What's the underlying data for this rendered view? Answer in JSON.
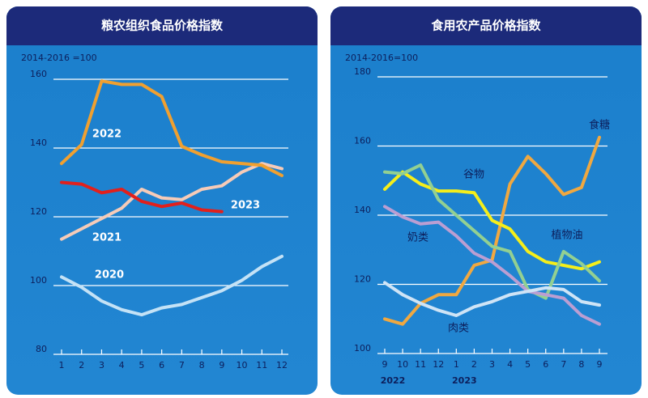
{
  "chart_data": [
    {
      "type": "line",
      "title": "粮农组织食品价格指数",
      "note": "2014-2016 =100",
      "categories": [
        "1",
        "2",
        "3",
        "4",
        "5",
        "6",
        "7",
        "8",
        "9",
        "10",
        "11",
        "12"
      ],
      "ylim": [
        80,
        160
      ],
      "yticks": [
        80,
        100,
        120,
        140,
        160
      ],
      "grid": true,
      "series": [
        {
          "name": "2020",
          "color": "#c4e2f6",
          "values": [
            102.5,
            99.5,
            95.5,
            93,
            91.5,
            93.5,
            94.5,
            96.5,
            98.5,
            101.5,
            105.5,
            108.5
          ]
        },
        {
          "name": "2021",
          "color": "#f6cbb8",
          "values": [
            113.5,
            116.5,
            119.5,
            122.5,
            128,
            125.5,
            125,
            128,
            129,
            133,
            135.5,
            134
          ]
        },
        {
          "name": "2022",
          "color": "#f0a030",
          "values": [
            135.5,
            141,
            159.5,
            158.5,
            158.5,
            155,
            140.5,
            138,
            136,
            135.5,
            135,
            132
          ]
        },
        {
          "name": "2023",
          "color": "#e2201c",
          "values": [
            130,
            129.5,
            127,
            128,
            124.5,
            123,
            124,
            122,
            121.5,
            null,
            null,
            null
          ]
        }
      ]
    },
    {
      "type": "line",
      "title": "食用农产品价格指数",
      "note": "2014-2016=100",
      "categories": [
        "9",
        "10",
        "11",
        "12",
        "1",
        "2",
        "3",
        "4",
        "5",
        "6",
        "7",
        "8",
        "9"
      ],
      "x_group_labels": [
        "2022",
        null,
        null,
        null,
        "2023",
        null,
        null,
        null,
        null,
        null,
        null,
        null,
        null
      ],
      "ylim": [
        100,
        180
      ],
      "yticks": [
        100,
        120,
        140,
        160,
        180
      ],
      "grid": true,
      "series": [
        {
          "name": "食糖",
          "color": "#f0a840",
          "values": [
            110,
            108.5,
            114.5,
            117,
            117,
            125.5,
            127,
            149,
            157,
            152,
            146,
            148,
            162.5
          ]
        },
        {
          "name": "谷物",
          "color": "#f5ee1a",
          "values": [
            147.5,
            152.5,
            149,
            147,
            147,
            146.5,
            138.5,
            136,
            129.5,
            126.5,
            125.5,
            124.5,
            126.5
          ]
        },
        {
          "name": "植物油",
          "color": "#92d092",
          "values": [
            152.5,
            152,
            154.5,
            144.5,
            140,
            135.5,
            131,
            129.5,
            118.5,
            116,
            129.5,
            126,
            121
          ]
        },
        {
          "name": "奶类",
          "color": "#bb9ed2",
          "values": [
            142.5,
            139.5,
            137.5,
            138,
            134,
            129,
            126.5,
            122.5,
            118,
            117,
            116,
            111,
            108.5
          ]
        },
        {
          "name": "肉类",
          "color": "#cfe4f6",
          "values": [
            120.5,
            117,
            114.5,
            112.5,
            111,
            113.5,
            115,
            117,
            118,
            119,
            118.5,
            115,
            114
          ]
        }
      ]
    }
  ]
}
